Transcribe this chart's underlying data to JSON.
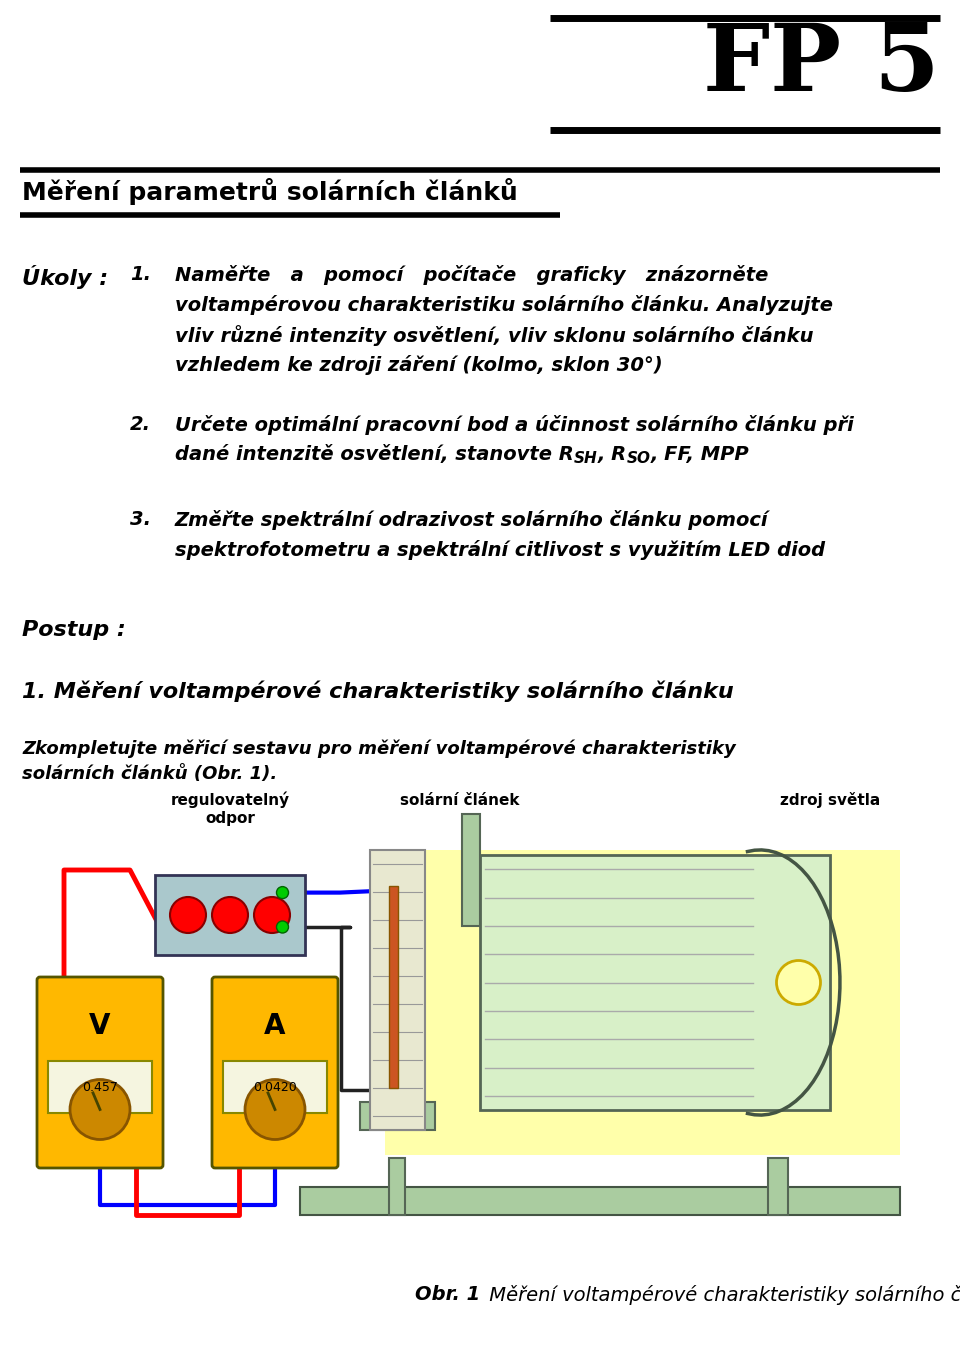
{
  "bg_color": "#ffffff",
  "fp5_text": "FP 5",
  "fp5_fontsize": 68,
  "title_text": "Měření parametrů solárních článků",
  "title_fontsize": 18,
  "ukoly_label": "Úkoly :",
  "task1_num": "1.",
  "task1_l1": "Naměřte   a   pomocí   počítače   graficky   znázorněte",
  "task1_l2": "voltampérovou charakteristiku solárního článku. Analyzujte",
  "task1_l3": "vliv různé intenzity osvětlení, vliv sklonu solárního článku",
  "task1_l4": "vzhledem ke zdroji záření (kolmo, sklon 30°)",
  "task2_num": "2.",
  "task2_l1": "Určete optimální pracovní bod a účinnost solárního článku při",
  "task2_l2a": "dané intenzitě osvětlení, stanovte R",
  "task2_l2b": "SH",
  "task2_l2c": ", R",
  "task2_l2d": "SO",
  "task2_l2e": ", FF, MPP",
  "task3_num": "3.",
  "task3_l1": "Změřte spektrální odrazivost solárního článku pomocí",
  "task3_l2": "spektrofotometru a spektrální citlivost s využitím LED diod",
  "postup_label": "Postup :",
  "sec1_title": "1. Měření voltampérové charakteristiky solárního článku",
  "sec1_body1": "Zkompletujte měřicí sestavu pro měření voltampérové charakteristiky",
  "sec1_body2": "solárních článků (Obr. 1).",
  "lbl_reg1": "regulovatelný",
  "lbl_reg2": "odpor",
  "lbl_solar": "solární článek",
  "lbl_light": "zdroj světla",
  "caption_bold": "Obr. 1",
  "caption_rest": " Měření voltampérové charakteristiky solárního článku",
  "task_fs": 14,
  "body_fs": 13
}
